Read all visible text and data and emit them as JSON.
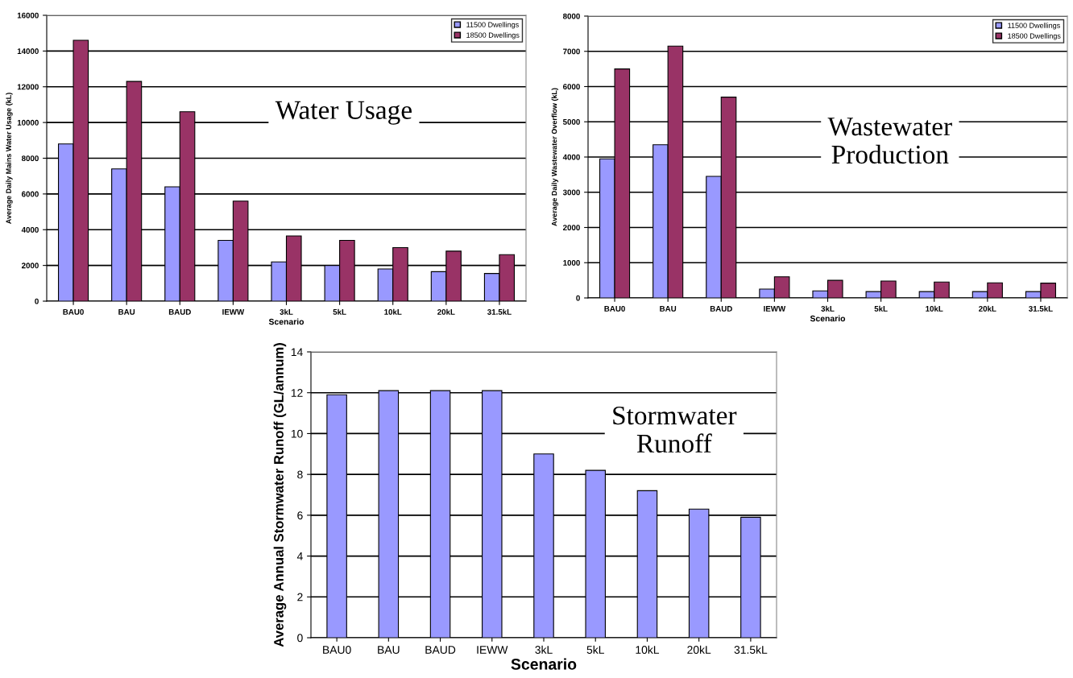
{
  "chart_data": [
    {
      "type": "bar",
      "title": "Water Usage",
      "xlabel": "Scenario",
      "ylabel": "Average Daily Mains Water Usage (kL)",
      "categories": [
        "BAU0",
        "BAU",
        "BAUD",
        "IEWW",
        "3kL",
        "5kL",
        "10kL",
        "20kL",
        "31.5kL"
      ],
      "series": [
        {
          "name": "11500 Dwellings",
          "color": "#9999ff",
          "values": [
            8800,
            7400,
            6400,
            3400,
            2200,
            2000,
            1800,
            1650,
            1550
          ]
        },
        {
          "name": "18500 Dwellings",
          "color": "#993366",
          "values": [
            14600,
            12300,
            10600,
            5600,
            3650,
            3400,
            3000,
            2800,
            2600
          ]
        }
      ],
      "ylim": [
        0,
        16000
      ],
      "yticks": [
        0,
        2000,
        4000,
        6000,
        8000,
        10000,
        12000,
        14000,
        16000
      ],
      "grid": "y",
      "legend": "top right"
    },
    {
      "type": "bar",
      "title": "Wastewater\nProduction",
      "xlabel": "Scenario",
      "ylabel": "Average Daily Wastewater Overflow (kL)",
      "categories": [
        "BAU0",
        "BAU",
        "BAUD",
        "IEWW",
        "3kL",
        "5kL",
        "10kL",
        "20kL",
        "31.5kL"
      ],
      "series": [
        {
          "name": "11500 Dwellings",
          "color": "#9999ff",
          "values": [
            3950,
            4350,
            3450,
            250,
            200,
            180,
            180,
            180,
            180
          ]
        },
        {
          "name": "18500 Dwellings",
          "color": "#993366",
          "values": [
            6500,
            7150,
            5700,
            600,
            500,
            480,
            450,
            430,
            420
          ]
        }
      ],
      "ylim": [
        0,
        8000
      ],
      "yticks": [
        0,
        1000,
        2000,
        3000,
        4000,
        5000,
        6000,
        7000,
        8000
      ],
      "grid": "y",
      "legend": "top right"
    },
    {
      "type": "bar",
      "title": "Stormwater\nRunoff",
      "xlabel": "Scenario",
      "ylabel": "Average Annual Stormwater Runoff (GL/annum)",
      "categories": [
        "BAU0",
        "BAU",
        "BAUD",
        "IEWW",
        "3kL",
        "5kL",
        "10kL",
        "20kL",
        "31.5kL"
      ],
      "series": [
        {
          "color": "#9999ff",
          "values": [
            11.9,
            12.1,
            12.1,
            12.1,
            9.0,
            8.2,
            7.2,
            6.3,
            5.9
          ]
        }
      ],
      "ylim": [
        0,
        14
      ],
      "yticks": [
        0,
        2,
        4,
        6,
        8,
        10,
        12,
        14
      ],
      "grid": "y"
    }
  ]
}
